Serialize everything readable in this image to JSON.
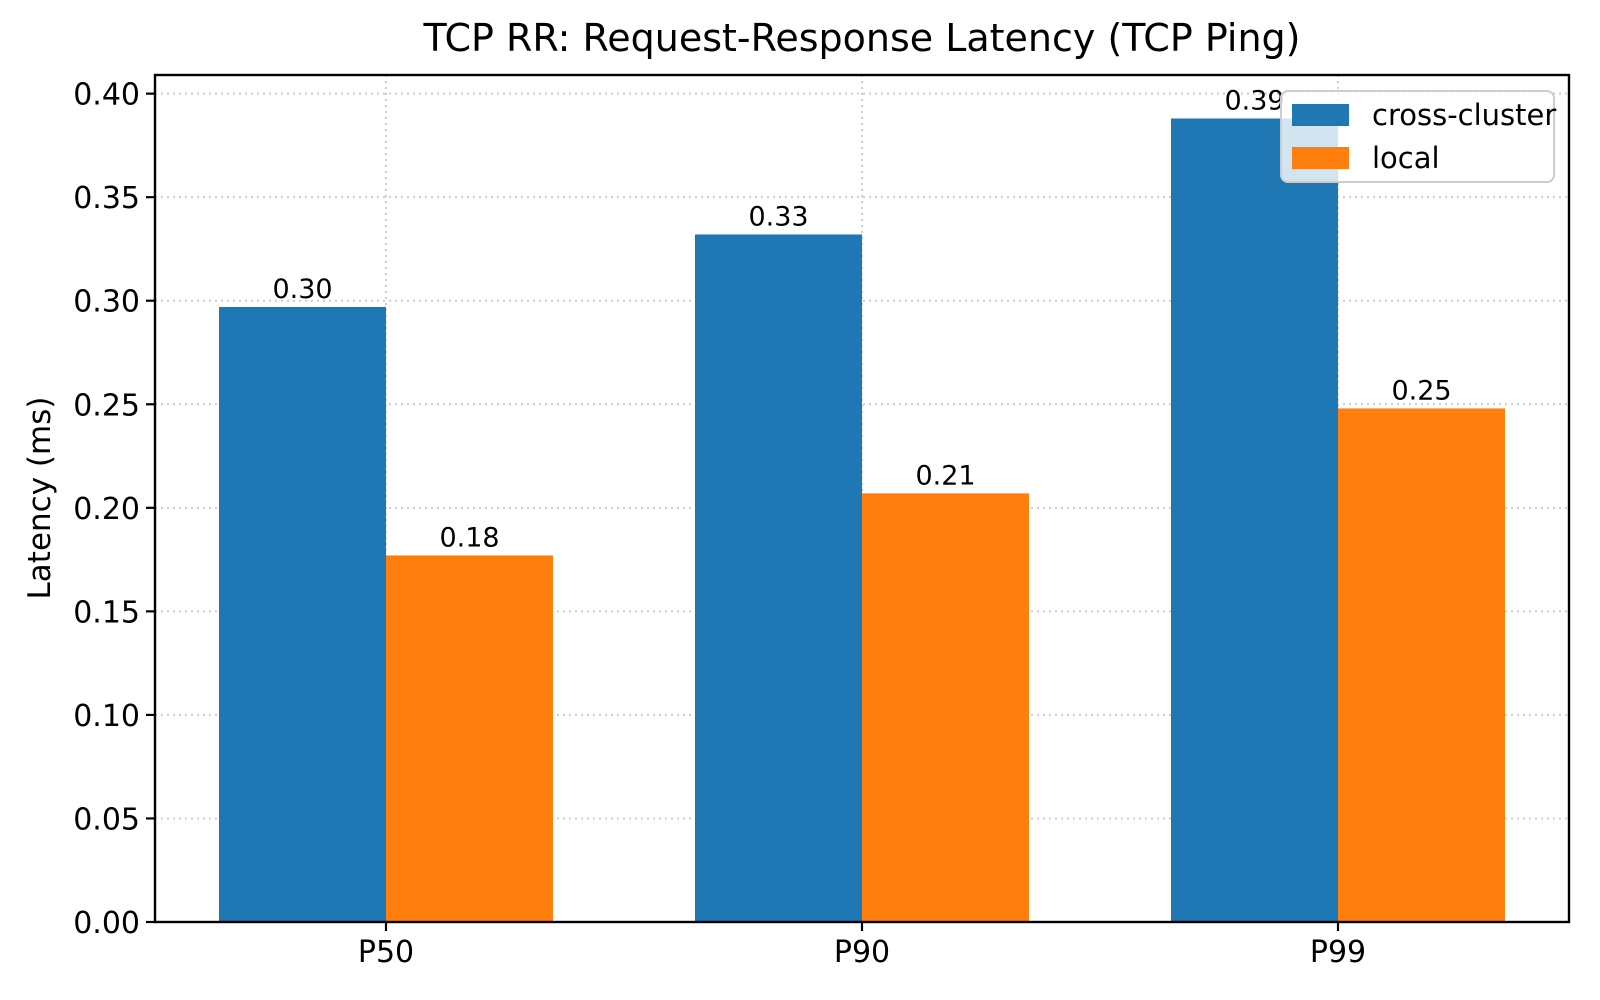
{
  "chart_data": {
    "type": "bar",
    "title": "TCP RR: Request-Response Latency (TCP Ping)",
    "xlabel": "",
    "ylabel": "Latency (ms)",
    "categories": [
      "P50",
      "P90",
      "P99"
    ],
    "series": [
      {
        "name": "cross-cluster",
        "color": "#1f77b4",
        "values": [
          0.297,
          0.332,
          0.388
        ],
        "labels": [
          "0.30",
          "0.33",
          "0.39"
        ]
      },
      {
        "name": "local",
        "color": "#ff7f0e",
        "values": [
          0.177,
          0.207,
          0.248
        ],
        "labels": [
          "0.18",
          "0.21",
          "0.25"
        ]
      }
    ],
    "ylim": [
      0,
      0.409
    ],
    "yticks": [
      0.0,
      0.05,
      0.1,
      0.15,
      0.2,
      0.25,
      0.3,
      0.35,
      0.4
    ],
    "ytick_labels": [
      "0.00",
      "0.05",
      "0.10",
      "0.15",
      "0.20",
      "0.25",
      "0.30",
      "0.35",
      "0.40"
    ],
    "grid": "dotted",
    "grid_color": "#cccccc",
    "legend_position": "upper right",
    "background_color": "#ffffff",
    "text_color": "#000000"
  }
}
